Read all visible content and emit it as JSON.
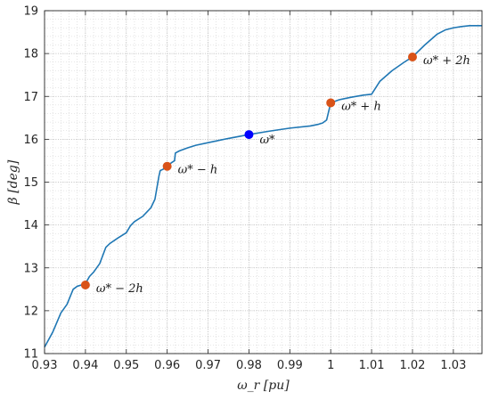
{
  "chart_data": {
    "type": "line",
    "xlabel": "ω_r [pu]",
    "ylabel": "β [deg]",
    "xlim": [
      0.93,
      1.037
    ],
    "ylim": [
      11,
      19
    ],
    "xticks": [
      "0.93",
      "0.94",
      "0.95",
      "0.96",
      "0.97",
      "0.98",
      "0.99",
      "1",
      "1.01",
      "1.02",
      "1.03"
    ],
    "yticks": [
      "11",
      "12",
      "13",
      "14",
      "15",
      "16",
      "17",
      "18",
      "19"
    ],
    "grid": "on (dotted, major and minor)",
    "colors": {
      "line": "#1f77b4",
      "center_point": "#0000ff",
      "step_points": "#d95319"
    },
    "series": [
      {
        "x": [
          0.93,
          0.932,
          0.934,
          0.9355,
          0.937,
          0.938,
          0.939,
          0.94,
          0.941,
          0.942,
          0.9435,
          0.945,
          0.946,
          0.948,
          0.95,
          0.951,
          0.952,
          0.954,
          0.955,
          0.956,
          0.957,
          0.958,
          0.9583,
          0.959,
          0.96,
          0.961,
          0.9618,
          0.962,
          0.963,
          0.965,
          0.967,
          0.97,
          0.975,
          0.98,
          0.985,
          0.99,
          0.995,
          0.997,
          0.998,
          0.999,
          1.0,
          1.002,
          1.005,
          1.008,
          1.01,
          1.012,
          1.015,
          1.018,
          1.02,
          1.023,
          1.026,
          1.028,
          1.03,
          1.032,
          1.034,
          1.037
        ],
        "y": [
          11.15,
          11.5,
          11.95,
          12.15,
          12.5,
          12.57,
          12.6,
          12.63,
          12.8,
          12.9,
          13.1,
          13.48,
          13.57,
          13.7,
          13.82,
          13.98,
          14.08,
          14.2,
          14.3,
          14.4,
          14.6,
          15.15,
          15.27,
          15.3,
          15.37,
          15.45,
          15.5,
          15.68,
          15.73,
          15.8,
          15.86,
          15.92,
          16.02,
          16.11,
          16.19,
          16.26,
          16.31,
          16.35,
          16.38,
          16.45,
          16.85,
          16.92,
          16.98,
          17.03,
          17.05,
          17.35,
          17.6,
          17.8,
          17.92,
          18.2,
          18.45,
          18.55,
          18.6,
          18.63,
          18.65,
          18.65
        ]
      }
    ],
    "markers": [
      {
        "x": 0.94,
        "y": 12.6,
        "label": "ω* − 2h",
        "color": "#d95319"
      },
      {
        "x": 0.96,
        "y": 15.37,
        "label": "ω* − h",
        "color": "#d95319"
      },
      {
        "x": 0.98,
        "y": 16.11,
        "label": "ω*",
        "color": "#0000ff"
      },
      {
        "x": 1.0,
        "y": 16.85,
        "label": "ω* + h",
        "color": "#d95319"
      },
      {
        "x": 1.02,
        "y": 17.92,
        "label": "ω* + 2h",
        "color": "#d95319"
      }
    ]
  }
}
